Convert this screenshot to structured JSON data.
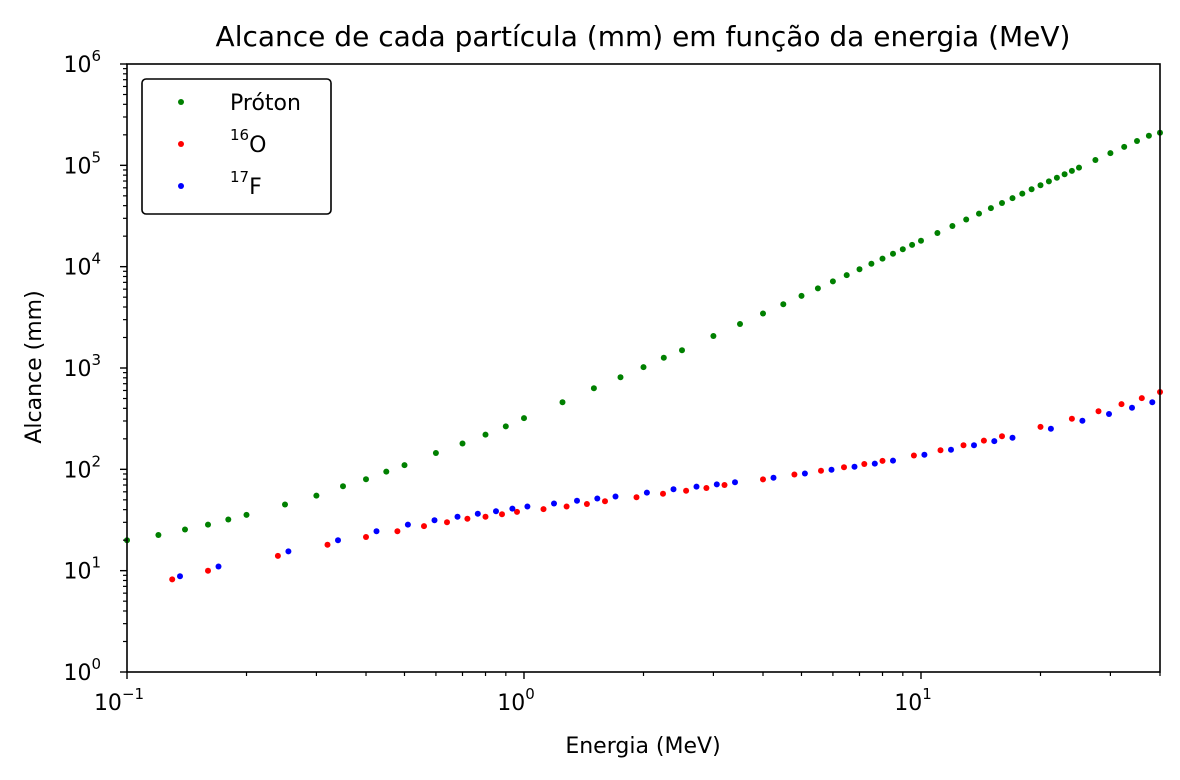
{
  "chart_data": {
    "type": "scatter",
    "title": "Alcance de cada partícula (mm) em função da energia (MeV)",
    "xlabel": "Energia (MeV)",
    "ylabel": "Alcance (mm)",
    "xscale": "log",
    "yscale": "log",
    "xlim": [
      0.1,
      40
    ],
    "ylim": [
      1,
      1000000
    ],
    "x_ticks": [
      {
        "base": "10",
        "exp": "−1"
      },
      {
        "base": "10",
        "exp": "0"
      },
      {
        "base": "10",
        "exp": "1"
      }
    ],
    "y_ticks": [
      {
        "base": "10",
        "exp": "0"
      },
      {
        "base": "10",
        "exp": "1"
      },
      {
        "base": "10",
        "exp": "2"
      },
      {
        "base": "10",
        "exp": "3"
      },
      {
        "base": "10",
        "exp": "4"
      },
      {
        "base": "10",
        "exp": "5"
      },
      {
        "base": "10",
        "exp": "6"
      }
    ],
    "ytick_bottom_label": "10",
    "ytick_bottom_exp": "0",
    "grid": false,
    "legend_position": "top-left",
    "series": [
      {
        "name": "Próton",
        "label_sup": "",
        "label_main": "Próton",
        "color": "#008000",
        "points": [
          [
            0.1,
            20
          ],
          [
            0.12,
            22.5
          ],
          [
            0.14,
            25.5
          ],
          [
            0.16,
            28.5
          ],
          [
            0.18,
            32
          ],
          [
            0.2,
            35.5
          ],
          [
            0.25,
            45
          ],
          [
            0.3,
            55
          ],
          [
            0.35,
            68
          ],
          [
            0.4,
            80
          ],
          [
            0.45,
            95
          ],
          [
            0.5,
            110
          ],
          [
            0.6,
            145
          ],
          [
            0.7,
            180
          ],
          [
            0.8,
            220
          ],
          [
            0.9,
            265
          ],
          [
            1.0,
            320
          ],
          [
            1.25,
            460
          ],
          [
            1.5,
            630
          ],
          [
            1.75,
            810
          ],
          [
            2.0,
            1020
          ],
          [
            2.25,
            1260
          ],
          [
            2.5,
            1500
          ],
          [
            3.0,
            2070
          ],
          [
            3.5,
            2720
          ],
          [
            4.0,
            3450
          ],
          [
            4.5,
            4250
          ],
          [
            5.0,
            5150
          ],
          [
            5.5,
            6100
          ],
          [
            6.0,
            7150
          ],
          [
            6.5,
            8250
          ],
          [
            7.0,
            9450
          ],
          [
            7.5,
            10700
          ],
          [
            8.0,
            12000
          ],
          [
            8.5,
            13400
          ],
          [
            9.0,
            14850
          ],
          [
            9.5,
            16400
          ],
          [
            10.0,
            18000
          ],
          [
            11.0,
            21500
          ],
          [
            12.0,
            25200
          ],
          [
            13.0,
            29200
          ],
          [
            14.0,
            33400
          ],
          [
            15.0,
            37800
          ],
          [
            16.0,
            42500
          ],
          [
            17.0,
            47500
          ],
          [
            18.0,
            52600
          ],
          [
            19.0,
            58000
          ],
          [
            20.0,
            63600
          ],
          [
            21.0,
            69400
          ],
          [
            22.0,
            75400
          ],
          [
            23.0,
            81700
          ],
          [
            24.0,
            88200
          ],
          [
            25.0,
            95000
          ],
          [
            27.5,
            113000
          ],
          [
            30.0,
            132000
          ],
          [
            32.5,
            152000
          ],
          [
            35.0,
            174000
          ],
          [
            37.5,
            196000
          ],
          [
            40.0,
            210000
          ]
        ]
      },
      {
        "name": "16O",
        "label_sup": "16",
        "label_main": "O",
        "color": "#ff0000",
        "points": [
          [
            0.13,
            8.2
          ],
          [
            0.16,
            10
          ],
          [
            0.24,
            14
          ],
          [
            0.32,
            18
          ],
          [
            0.4,
            21.5
          ],
          [
            0.48,
            24.5
          ],
          [
            0.56,
            27.5
          ],
          [
            0.64,
            30
          ],
          [
            0.72,
            32.5
          ],
          [
            0.8,
            34
          ],
          [
            0.88,
            36
          ],
          [
            0.96,
            38
          ],
          [
            1.12,
            40.5
          ],
          [
            1.28,
            43
          ],
          [
            1.44,
            45.5
          ],
          [
            1.6,
            48.5
          ],
          [
            1.92,
            53
          ],
          [
            2.24,
            57.5
          ],
          [
            2.56,
            61.5
          ],
          [
            2.88,
            65.5
          ],
          [
            3.2,
            70
          ],
          [
            4.0,
            79.5
          ],
          [
            4.8,
            89
          ],
          [
            5.6,
            97
          ],
          [
            6.4,
            105
          ],
          [
            7.2,
            113
          ],
          [
            8.0,
            121
          ],
          [
            9.6,
            137
          ],
          [
            11.2,
            154
          ],
          [
            12.8,
            173
          ],
          [
            14.4,
            192
          ],
          [
            16.0,
            212
          ],
          [
            20.0,
            262
          ],
          [
            24.0,
            315
          ],
          [
            28.0,
            375
          ],
          [
            32.0,
            440
          ],
          [
            36.0,
            505
          ],
          [
            40.0,
            580
          ]
        ]
      },
      {
        "name": "17F",
        "label_sup": "17",
        "label_main": "F",
        "color": "#0000ff",
        "points": [
          [
            0.136,
            8.8
          ],
          [
            0.17,
            11
          ],
          [
            0.255,
            15.5
          ],
          [
            0.34,
            20
          ],
          [
            0.425,
            24.5
          ],
          [
            0.51,
            28.5
          ],
          [
            0.595,
            31.5
          ],
          [
            0.68,
            34
          ],
          [
            0.765,
            36.5
          ],
          [
            0.85,
            38.5
          ],
          [
            0.935,
            41
          ],
          [
            1.02,
            43
          ],
          [
            1.19,
            46
          ],
          [
            1.36,
            49
          ],
          [
            1.53,
            51.5
          ],
          [
            1.7,
            54
          ],
          [
            2.04,
            59
          ],
          [
            2.38,
            63.5
          ],
          [
            2.72,
            67.5
          ],
          [
            3.06,
            71
          ],
          [
            3.4,
            74.5
          ],
          [
            4.25,
            82.5
          ],
          [
            5.1,
            91
          ],
          [
            5.95,
            99
          ],
          [
            6.8,
            106
          ],
          [
            7.65,
            114
          ],
          [
            8.5,
            122
          ],
          [
            10.2,
            139
          ],
          [
            11.9,
            156
          ],
          [
            13.6,
            173
          ],
          [
            15.3,
            190
          ],
          [
            17.0,
            205
          ],
          [
            21.25,
            252
          ],
          [
            25.5,
            302
          ],
          [
            29.75,
            352
          ],
          [
            34.0,
            405
          ],
          [
            38.25,
            460
          ]
        ]
      }
    ]
  }
}
